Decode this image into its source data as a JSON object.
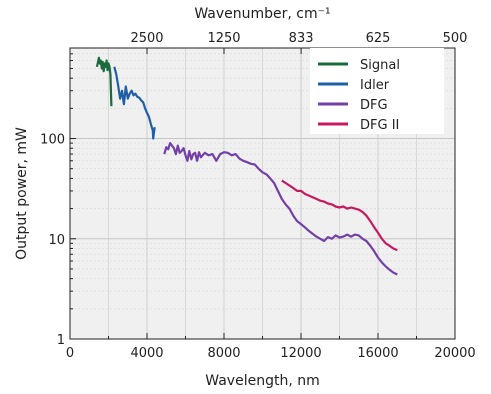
{
  "chart_data": {
    "type": "line",
    "xlabel": "Wavelength, nm",
    "ylabel": "Output power, mW",
    "top_axis_label": "Wavenumber, cm⁻¹",
    "xlim": [
      0,
      20000
    ],
    "ylim": [
      1,
      800
    ],
    "yscale": "log",
    "grid": true,
    "legend_position": "top-right",
    "x_ticks": [
      0,
      4000,
      8000,
      12000,
      16000,
      20000
    ],
    "x_tick_labels": [
      "0",
      "4000",
      "8000",
      "12000",
      "16000",
      "20000"
    ],
    "y_ticks": [
      1,
      10,
      100
    ],
    "y_tick_labels": [
      "1",
      "10",
      "100"
    ],
    "top_ticks": [
      2500,
      1250,
      833,
      625,
      500
    ],
    "top_tick_labels": [
      "2500",
      "1250",
      "833",
      "625",
      "500"
    ],
    "series": [
      {
        "name": "Signal",
        "color": "#1a6b3c",
        "points": [
          [
            1400,
            520
          ],
          [
            1500,
            640
          ],
          [
            1550,
            560
          ],
          [
            1600,
            600
          ],
          [
            1650,
            500
          ],
          [
            1700,
            580
          ],
          [
            1750,
            470
          ],
          [
            1800,
            560
          ],
          [
            1850,
            520
          ],
          [
            1900,
            600
          ],
          [
            1950,
            480
          ],
          [
            2000,
            560
          ],
          [
            2050,
            520
          ],
          [
            2100,
            440
          ],
          [
            2150,
            210
          ]
        ]
      },
      {
        "name": "Idler",
        "color": "#1f5fa8",
        "points": [
          [
            2300,
            520
          ],
          [
            2400,
            440
          ],
          [
            2500,
            340
          ],
          [
            2600,
            250
          ],
          [
            2700,
            300
          ],
          [
            2800,
            220
          ],
          [
            2900,
            330
          ],
          [
            3000,
            250
          ],
          [
            3100,
            280
          ],
          [
            3200,
            300
          ],
          [
            3300,
            270
          ],
          [
            3400,
            280
          ],
          [
            3500,
            260
          ],
          [
            3600,
            255
          ],
          [
            3700,
            240
          ],
          [
            3800,
            230
          ],
          [
            3900,
            200
          ],
          [
            4000,
            180
          ],
          [
            4100,
            165
          ],
          [
            4200,
            140
          ],
          [
            4300,
            120
          ],
          [
            4320,
            100
          ],
          [
            4350,
            110
          ],
          [
            4400,
            130
          ]
        ]
      },
      {
        "name": "DFG",
        "color": "#7340a8",
        "points": [
          [
            4900,
            70
          ],
          [
            5000,
            82
          ],
          [
            5100,
            78
          ],
          [
            5200,
            90
          ],
          [
            5300,
            85
          ],
          [
            5400,
            80
          ],
          [
            5500,
            70
          ],
          [
            5600,
            85
          ],
          [
            5700,
            72
          ],
          [
            5800,
            75
          ],
          [
            5900,
            80
          ],
          [
            6000,
            68
          ],
          [
            6100,
            60
          ],
          [
            6200,
            75
          ],
          [
            6300,
            62
          ],
          [
            6400,
            70
          ],
          [
            6500,
            72
          ],
          [
            6600,
            60
          ],
          [
            6700,
            73
          ],
          [
            6800,
            65
          ],
          [
            7000,
            72
          ],
          [
            7200,
            68
          ],
          [
            7400,
            70
          ],
          [
            7600,
            60
          ],
          [
            7800,
            70
          ],
          [
            8000,
            73
          ],
          [
            8200,
            72
          ],
          [
            8400,
            68
          ],
          [
            8600,
            70
          ],
          [
            8800,
            63
          ],
          [
            9000,
            60
          ],
          [
            9200,
            58
          ],
          [
            9400,
            56
          ],
          [
            9600,
            55
          ],
          [
            9800,
            50
          ],
          [
            10000,
            46
          ],
          [
            10200,
            44
          ],
          [
            10400,
            40
          ],
          [
            10600,
            36
          ],
          [
            10800,
            30
          ],
          [
            11000,
            25
          ],
          [
            11200,
            22
          ],
          [
            11400,
            20
          ],
          [
            11600,
            17
          ],
          [
            11800,
            15
          ],
          [
            12000,
            14
          ],
          [
            12200,
            13
          ],
          [
            12400,
            12
          ],
          [
            12600,
            11.2
          ],
          [
            12800,
            10.5
          ],
          [
            13000,
            10
          ],
          [
            13200,
            9.5
          ],
          [
            13400,
            10.4
          ],
          [
            13600,
            10
          ],
          [
            13800,
            10.8
          ],
          [
            14000,
            10.3
          ],
          [
            14200,
            10.5
          ],
          [
            14400,
            11
          ],
          [
            14600,
            10.5
          ],
          [
            14800,
            11
          ],
          [
            15000,
            10.8
          ],
          [
            15200,
            10
          ],
          [
            15400,
            9.5
          ],
          [
            15600,
            8.5
          ],
          [
            15800,
            7.5
          ],
          [
            16000,
            6.5
          ],
          [
            16200,
            5.8
          ],
          [
            16400,
            5.3
          ],
          [
            16600,
            4.9
          ],
          [
            16800,
            4.6
          ],
          [
            17000,
            4.4
          ]
        ]
      },
      {
        "name": "DFG II",
        "color": "#c8195f",
        "points": [
          [
            11000,
            38
          ],
          [
            11200,
            36
          ],
          [
            11400,
            34
          ],
          [
            11600,
            32
          ],
          [
            11800,
            30
          ],
          [
            12000,
            30
          ],
          [
            12200,
            28
          ],
          [
            12400,
            27
          ],
          [
            12600,
            26
          ],
          [
            12800,
            25
          ],
          [
            13000,
            24
          ],
          [
            13200,
            23.5
          ],
          [
            13400,
            22.5
          ],
          [
            13600,
            22
          ],
          [
            13800,
            21
          ],
          [
            14000,
            20.5
          ],
          [
            14200,
            21
          ],
          [
            14400,
            20
          ],
          [
            14600,
            20.5
          ],
          [
            14800,
            20
          ],
          [
            15000,
            19.5
          ],
          [
            15200,
            18.5
          ],
          [
            15400,
            17
          ],
          [
            15600,
            15
          ],
          [
            15800,
            13
          ],
          [
            16000,
            11.5
          ],
          [
            16200,
            10
          ],
          [
            16400,
            9
          ],
          [
            16600,
            8.5
          ],
          [
            16800,
            8
          ],
          [
            17000,
            7.7
          ]
        ]
      }
    ]
  }
}
